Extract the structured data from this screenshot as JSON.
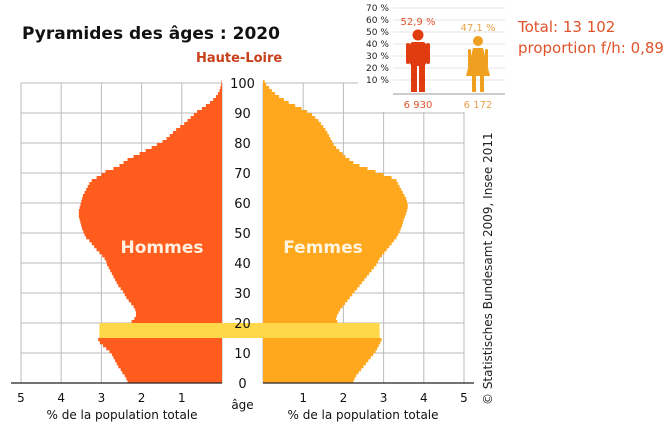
{
  "title": "Pyramides des âges : 2020",
  "region": "Haute-Loire",
  "summary": {
    "total": "Total: 13 102",
    "ratio": "proportion f/h: 0,89"
  },
  "credit": "© Statistisches Bundesamt 2009, Insee 2011",
  "inset": {
    "ticks": [
      "10 %",
      "20 %",
      "30 %",
      "40 %",
      "50 %",
      "60 %",
      "70 %"
    ],
    "men_pct": "52,9 %",
    "women_pct": "47,1 %",
    "men_count": "6 930",
    "women_count": "6 172"
  },
  "colors": {
    "men": "#ff5c1e",
    "women": "#ffa81e",
    "highlight": "#ffd84a",
    "grid": "#bbbbbb",
    "region": "#c8401a",
    "summary": "#e0522a",
    "man_icon": "#e03c10",
    "woman_icon": "#f0a020",
    "inset_text_men": "#e0522a",
    "inset_text_women": "#e8a24a"
  },
  "chart_data": {
    "type": "bar",
    "orientation": "horizontal-population-pyramid",
    "age_step": 1,
    "age_range": [
      0,
      100
    ],
    "age_ticks": [
      0,
      10,
      20,
      30,
      40,
      50,
      60,
      70,
      80,
      90,
      100
    ],
    "age_label": "âge",
    "x_ticks": [
      5,
      4,
      3,
      2,
      1
    ],
    "x_ticks_right": [
      1,
      2,
      3,
      4,
      5
    ],
    "xlim": [
      0,
      5
    ],
    "xlabel_left": "% de la population totale",
    "xlabel_right": "% de la population totale",
    "highlight_band": [
      15,
      19
    ],
    "series": [
      {
        "name": "Hommes",
        "values": [
          2.35,
          2.38,
          2.42,
          2.48,
          2.52,
          2.58,
          2.62,
          2.66,
          2.7,
          2.74,
          2.8,
          2.88,
          2.96,
          3.04,
          3.08,
          3.05,
          2.95,
          2.8,
          2.65,
          2.45,
          2.25,
          2.18,
          2.14,
          2.14,
          2.16,
          2.2,
          2.26,
          2.32,
          2.38,
          2.42,
          2.46,
          2.52,
          2.58,
          2.62,
          2.66,
          2.7,
          2.74,
          2.78,
          2.82,
          2.86,
          2.88,
          2.92,
          2.98,
          3.05,
          3.12,
          3.18,
          3.24,
          3.3,
          3.38,
          3.42,
          3.45,
          3.48,
          3.5,
          3.52,
          3.54,
          3.56,
          3.56,
          3.56,
          3.54,
          3.52,
          3.5,
          3.48,
          3.46,
          3.42,
          3.38,
          3.34,
          3.3,
          3.24,
          3.12,
          3.0,
          2.9,
          2.7,
          2.55,
          2.45,
          2.35,
          2.2,
          2.05,
          1.9,
          1.75,
          1.62,
          1.48,
          1.38,
          1.3,
          1.22,
          1.14,
          1.04,
          0.94,
          0.86,
          0.78,
          0.7,
          0.62,
          0.5,
          0.4,
          0.3,
          0.22,
          0.15,
          0.1,
          0.06,
          0.04,
          0.02,
          0.01
        ]
      },
      {
        "name": "Femmes",
        "values": [
          2.25,
          2.28,
          2.32,
          2.38,
          2.44,
          2.5,
          2.56,
          2.62,
          2.68,
          2.74,
          2.8,
          2.84,
          2.88,
          2.92,
          2.95,
          2.9,
          2.8,
          2.6,
          2.3,
          2.05,
          1.85,
          1.82,
          1.84,
          1.88,
          1.92,
          1.98,
          2.04,
          2.1,
          2.16,
          2.22,
          2.28,
          2.34,
          2.4,
          2.46,
          2.52,
          2.58,
          2.64,
          2.7,
          2.76,
          2.82,
          2.86,
          2.9,
          2.96,
          3.02,
          3.08,
          3.14,
          3.2,
          3.26,
          3.32,
          3.36,
          3.4,
          3.43,
          3.46,
          3.48,
          3.5,
          3.53,
          3.56,
          3.58,
          3.6,
          3.6,
          3.58,
          3.56,
          3.52,
          3.48,
          3.44,
          3.4,
          3.36,
          3.32,
          3.2,
          3.0,
          2.8,
          2.6,
          2.4,
          2.25,
          2.15,
          2.05,
          1.98,
          1.9,
          1.82,
          1.76,
          1.72,
          1.68,
          1.64,
          1.6,
          1.55,
          1.5,
          1.44,
          1.38,
          1.3,
          1.22,
          1.1,
          0.96,
          0.8,
          0.64,
          0.52,
          0.4,
          0.3,
          0.22,
          0.15,
          0.08,
          0.04
        ]
      }
    ]
  }
}
